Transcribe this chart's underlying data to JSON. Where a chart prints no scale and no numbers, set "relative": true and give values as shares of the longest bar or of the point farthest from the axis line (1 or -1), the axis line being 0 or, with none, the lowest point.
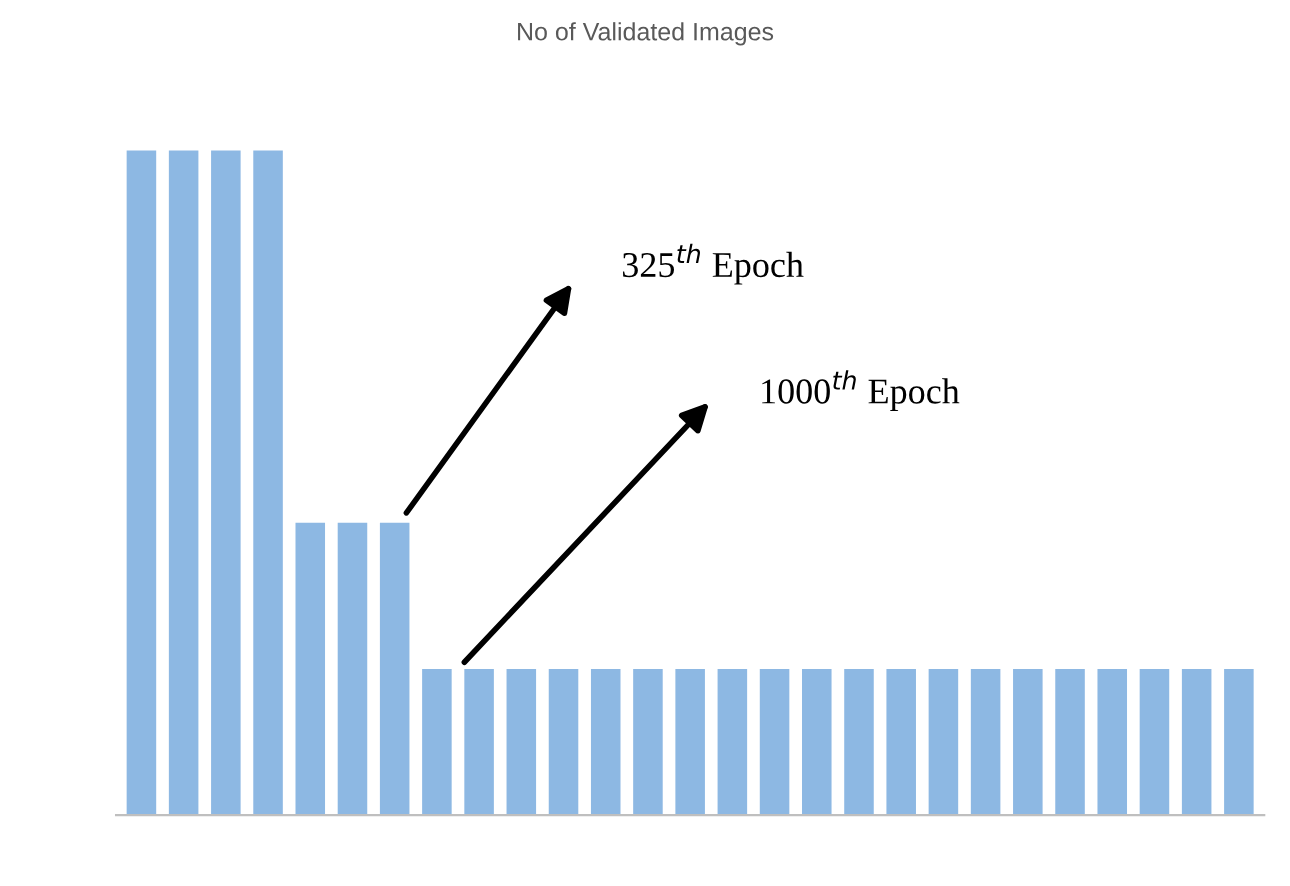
{
  "chart_data": {
    "type": "bar",
    "title": "No of Validated Images",
    "relative": true,
    "categories": [
      null,
      null,
      null,
      null,
      null,
      null,
      null,
      null,
      null,
      null,
      null,
      null,
      null,
      null,
      null,
      null,
      null,
      null,
      null,
      null,
      null,
      null,
      null,
      null,
      null,
      null,
      null
    ],
    "values": [
      1,
      1,
      1,
      1,
      0.44,
      0.44,
      0.44,
      0.22,
      0.22,
      0.22,
      0.22,
      0.22,
      0.22,
      0.22,
      0.22,
      0.22,
      0.22,
      0.22,
      0.22,
      0.22,
      0.22,
      0.22,
      0.22,
      0.22,
      0.22,
      0.22,
      0.22
    ],
    "color": "#8db8e3",
    "annotations": [
      "325$^{th}$ Epoch",
      "1000$^{th}$ Epoch"
    ]
  }
}
